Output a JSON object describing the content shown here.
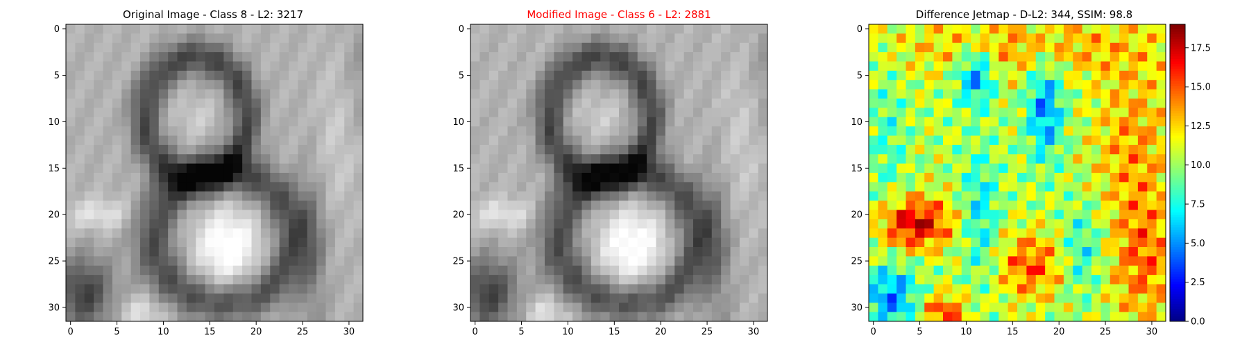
{
  "chart_data": [
    {
      "type": "heatmap",
      "title": "Original Image - Class 8 - L2: 3217",
      "title_color": "#000000",
      "colormap": "gray",
      "x_ticks": [
        0,
        5,
        10,
        15,
        20,
        25,
        30
      ],
      "y_ticks": [
        0,
        5,
        10,
        15,
        20,
        25,
        30
      ],
      "xlim": [
        -0.5,
        31.5
      ],
      "ylim": [
        31.5,
        -0.5
      ],
      "grid": false
    },
    {
      "type": "heatmap",
      "title": "Modified Image - Class 6 - L2: 2881",
      "title_color": "#ff0000",
      "colormap": "gray",
      "x_ticks": [
        0,
        5,
        10,
        15,
        20,
        25,
        30
      ],
      "y_ticks": [
        0,
        5,
        10,
        15,
        20,
        25,
        30
      ],
      "xlim": [
        -0.5,
        31.5
      ],
      "ylim": [
        31.5,
        -0.5
      ],
      "grid": false
    },
    {
      "type": "heatmap",
      "title": "Difference Jetmap - D-L2: 344, SSIM: 98.8",
      "title_color": "#000000",
      "colormap": "jet",
      "x_ticks": [
        0,
        5,
        10,
        15,
        20,
        25,
        30
      ],
      "y_ticks": [
        0,
        5,
        10,
        15,
        20,
        25,
        30
      ],
      "xlim": [
        -0.5,
        31.5
      ],
      "ylim": [
        31.5,
        -0.5
      ],
      "grid": false,
      "colorbar": {
        "range": [
          0,
          19
        ],
        "ticks": [
          "0.0",
          "2.5",
          "5.0",
          "7.5",
          "10.0",
          "12.5",
          "15.0",
          "17.5"
        ]
      }
    }
  ]
}
